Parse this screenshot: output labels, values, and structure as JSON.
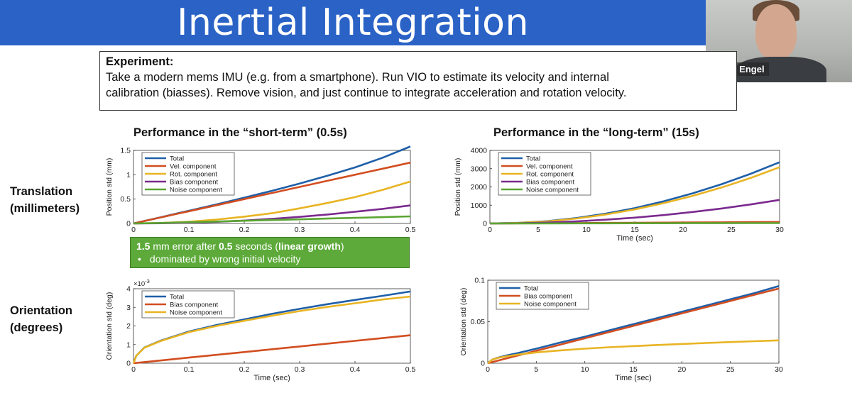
{
  "slide": {
    "title": "Inertial Integration",
    "presenter_name": "Jakob Engel"
  },
  "experiment": {
    "heading": "Experiment:",
    "lines": [
      "Take a modern mems IMU (e.g. from a smartphone). Run VIO to estimate its velocity and internal",
      "calibration (biasses). Remove vision, and just continue to integrate acceleration and rotation velocity."
    ]
  },
  "sections": {
    "short_term": "Performance in the “short-term” (0.5s)",
    "long_term": "Performance in the “long-term” (15s)"
  },
  "row_labels": {
    "translation": [
      "Translation",
      "(millimeters)"
    ],
    "orientation": [
      "Orientation",
      "(degrees)"
    ]
  },
  "callout": {
    "value1": "1.5",
    "text1": " mm error after ",
    "value2": "0.5",
    "text2": " seconds (",
    "emphasis": "linear growth",
    "text3": ")",
    "bullet": "dominated by wrong initial velocity"
  },
  "colors": {
    "total": "#1f5fa8",
    "vel": "#d24e20",
    "rot": "#e8b423",
    "bias_trans": "#7b2a8e",
    "noise_trans": "#5aa532",
    "bias_orient": "#d24e20",
    "noise_orient": "#e8b423"
  },
  "chart_data": [
    {
      "id": "trans_short",
      "type": "line",
      "xlabel": "",
      "ylabel": "Position std (mm)",
      "xlim": [
        0,
        0.5
      ],
      "ylim": [
        0,
        1.5
      ],
      "xticks": [
        0,
        0.1,
        0.2,
        0.3,
        0.4,
        0.5
      ],
      "xtick_labels": [
        "0",
        "0.1",
        "0.2",
        "0.3",
        "0.4",
        "0.5"
      ],
      "yticks": [
        0,
        0.5,
        1,
        1.5
      ],
      "ytick_labels": [
        "0",
        "0.5",
        "1",
        "1.5"
      ],
      "legend_position": "top-left",
      "x": [
        0,
        0.05,
        0.1,
        0.15,
        0.2,
        0.25,
        0.3,
        0.35,
        0.4,
        0.45,
        0.5
      ],
      "series": [
        {
          "name": "Total",
          "color": "total",
          "values": [
            0,
            0.13,
            0.26,
            0.39,
            0.53,
            0.67,
            0.82,
            0.98,
            1.15,
            1.35,
            1.58
          ]
        },
        {
          "name": "Vel. component",
          "color": "vel",
          "values": [
            0,
            0.125,
            0.25,
            0.375,
            0.5,
            0.625,
            0.75,
            0.875,
            1.0,
            1.125,
            1.25
          ]
        },
        {
          "name": "Rot. component",
          "color": "rot",
          "values": [
            0,
            0.01,
            0.035,
            0.08,
            0.14,
            0.21,
            0.31,
            0.42,
            0.54,
            0.69,
            0.86
          ]
        },
        {
          "name": "Bias component",
          "color": "bias_trans",
          "values": [
            0,
            0.004,
            0.015,
            0.034,
            0.06,
            0.094,
            0.135,
            0.183,
            0.24,
            0.3,
            0.37
          ]
        },
        {
          "name": "Noise component",
          "color": "noise_trans",
          "values": [
            0,
            0.01,
            0.025,
            0.04,
            0.055,
            0.07,
            0.085,
            0.1,
            0.115,
            0.13,
            0.145
          ]
        }
      ]
    },
    {
      "id": "trans_long",
      "type": "line",
      "xlabel": "Time (sec)",
      "ylabel": "Position std (mm)",
      "xlim": [
        0,
        30
      ],
      "ylim": [
        0,
        4000
      ],
      "xticks": [
        0,
        5,
        10,
        15,
        20,
        25,
        30
      ],
      "xtick_labels": [
        "0",
        "5",
        "10",
        "15",
        "20",
        "25",
        "30"
      ],
      "yticks": [
        0,
        1000,
        2000,
        3000,
        4000
      ],
      "ytick_labels": [
        "0",
        "1000",
        "2000",
        "3000",
        "4000"
      ],
      "legend_position": "top-left",
      "x": [
        0,
        3,
        6,
        9,
        12,
        15,
        18,
        21,
        24,
        27,
        30
      ],
      "series": [
        {
          "name": "Total",
          "color": "total",
          "values": [
            0,
            35,
            130,
            300,
            540,
            840,
            1210,
            1650,
            2150,
            2720,
            3350
          ]
        },
        {
          "name": "Vel. component",
          "color": "vel",
          "values": [
            0,
            8,
            16,
            24,
            32,
            40,
            48,
            56,
            64,
            72,
            80
          ]
        },
        {
          "name": "Rot. component",
          "color": "rot",
          "values": [
            0,
            30,
            115,
            270,
            490,
            770,
            1110,
            1510,
            1970,
            2490,
            3080
          ]
        },
        {
          "name": "Bias component",
          "color": "bias_trans",
          "values": [
            0,
            12,
            50,
            115,
            205,
            320,
            460,
            630,
            820,
            1040,
            1290
          ]
        },
        {
          "name": "Noise component",
          "color": "noise_trans",
          "values": [
            0,
            2,
            4,
            6,
            8,
            10,
            12,
            14,
            16,
            18,
            20
          ]
        }
      ]
    },
    {
      "id": "orient_short",
      "type": "line",
      "xlabel": "Time (sec)",
      "ylabel": "Orientation std (deg)",
      "y_scale_label": "×10",
      "y_scale_exponent": "-3",
      "xlim": [
        0,
        0.5
      ],
      "ylim": [
        0,
        4
      ],
      "xticks": [
        0,
        0.1,
        0.2,
        0.3,
        0.4,
        0.5
      ],
      "xtick_labels": [
        "0",
        "0.1",
        "0.2",
        "0.3",
        "0.4",
        "0.5"
      ],
      "yticks": [
        0,
        1,
        2,
        3,
        4
      ],
      "ytick_labels": [
        "0",
        "1",
        "2",
        "3",
        "4"
      ],
      "legend_position": "top-left",
      "x": [
        0,
        0.005,
        0.02,
        0.05,
        0.1,
        0.15,
        0.2,
        0.25,
        0.3,
        0.35,
        0.4,
        0.45,
        0.5
      ],
      "series": [
        {
          "name": "Total",
          "color": "total",
          "values": [
            0,
            0.4,
            0.85,
            1.22,
            1.7,
            2.05,
            2.35,
            2.65,
            2.92,
            3.17,
            3.4,
            3.62,
            3.85
          ]
        },
        {
          "name": "Bias component",
          "color": "bias_orient",
          "values": [
            0,
            0.015,
            0.06,
            0.15,
            0.3,
            0.45,
            0.6,
            0.75,
            0.9,
            1.05,
            1.2,
            1.35,
            1.5
          ]
        },
        {
          "name": "Noise component",
          "color": "noise_orient",
          "values": [
            0,
            0.4,
            0.84,
            1.2,
            1.67,
            2.0,
            2.28,
            2.55,
            2.8,
            3.02,
            3.22,
            3.42,
            3.58
          ]
        }
      ]
    },
    {
      "id": "orient_long",
      "type": "line",
      "xlabel": "Time (sec)",
      "ylabel": "Orientation std (deg)",
      "xlim": [
        0,
        30
      ],
      "ylim": [
        0,
        0.1
      ],
      "xticks": [
        0,
        5,
        10,
        15,
        20,
        25,
        30
      ],
      "xtick_labels": [
        "0",
        "5",
        "10",
        "15",
        "20",
        "25",
        "30"
      ],
      "yticks": [
        0,
        0.05,
        0.1
      ],
      "ytick_labels": [
        "0",
        "0.05",
        "0.1"
      ],
      "legend_position": "top-left",
      "x": [
        0,
        0.5,
        1,
        2,
        3,
        5,
        7.5,
        10,
        12.5,
        15,
        17.5,
        20,
        22.5,
        25,
        27.5,
        30
      ],
      "series": [
        {
          "name": "Total",
          "color": "total",
          "values": [
            0,
            0.0045,
            0.0065,
            0.0095,
            0.012,
            0.0175,
            0.025,
            0.032,
            0.0395,
            0.047,
            0.0545,
            0.062,
            0.0695,
            0.077,
            0.0845,
            0.093
          ]
        },
        {
          "name": "Bias component",
          "color": "bias_orient",
          "values": [
            0,
            0.0015,
            0.003,
            0.006,
            0.009,
            0.015,
            0.0225,
            0.03,
            0.0375,
            0.045,
            0.0525,
            0.06,
            0.0675,
            0.075,
            0.0825,
            0.09
          ]
        },
        {
          "name": "Noise component",
          "color": "noise_orient",
          "values": [
            0,
            0.0045,
            0.0062,
            0.0085,
            0.0102,
            0.013,
            0.0155,
            0.0175,
            0.0192,
            0.0206,
            0.022,
            0.0232,
            0.0244,
            0.0255,
            0.0265,
            0.0275
          ]
        }
      ]
    }
  ]
}
